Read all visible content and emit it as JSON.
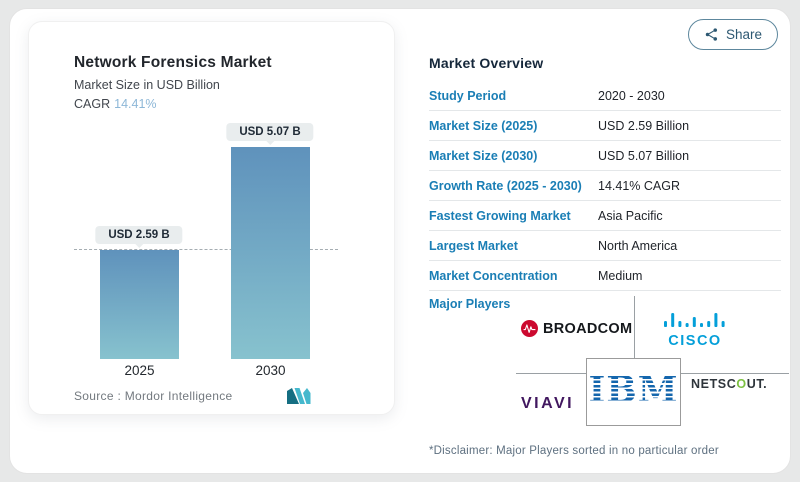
{
  "share": {
    "label": "Share"
  },
  "chart": {
    "title": "Network Forensics Market",
    "subtitle": "Market Size in USD Billion",
    "cagr_label": "CAGR",
    "cagr_value": "14.41%",
    "source": "Source :  Mordor Intelligence"
  },
  "chart_data": {
    "type": "bar",
    "title": "Network Forensics Market",
    "subtitle": "Market Size in USD Billion",
    "categories": [
      "2025",
      "2030"
    ],
    "values": [
      2.59,
      5.07
    ],
    "bar_labels": [
      "USD 2.59 B",
      "USD 5.07 B"
    ],
    "unit": "USD Billion",
    "cagr_pct": 14.41,
    "ylim": [
      0,
      5.5
    ],
    "reference_line_at": 2.59,
    "bar_color_top": "#5f92bc",
    "bar_color_bottom": "#87c2ce"
  },
  "overview": {
    "heading": "Market Overview",
    "rows": [
      {
        "label": "Study Period",
        "value": "2020 - 2030"
      },
      {
        "label": "Market Size (2025)",
        "value": "USD 2.59 Billion"
      },
      {
        "label": "Market Size (2030)",
        "value": "USD 5.07 Billion"
      },
      {
        "label": "Growth Rate (2025 - 2030)",
        "value": "14.41% CAGR"
      },
      {
        "label": "Fastest Growing Market",
        "value": "Asia Pacific"
      },
      {
        "label": "Largest Market",
        "value": "North America"
      },
      {
        "label": "Market Concentration",
        "value": "Medium"
      }
    ],
    "major_players_label": "Major Players",
    "disclaimer": "*Disclaimer: Major Players sorted in no particular order"
  },
  "logos": {
    "broadcom": "BROADCOM",
    "cisco": "CISCO",
    "viavi": "VIAVI",
    "ibm": "IBM",
    "netscout_pre": "NETSC",
    "netscout_o": "O",
    "netscout_post": "UT."
  },
  "colors": {
    "label_teal": "#1a7eb5",
    "cagr_blue": "#8db7d7",
    "broadcom_red": "#cc092f",
    "cisco_blue": "#049fd9",
    "viavi_purple": "#41175f",
    "ibm_blue": "#1466ad",
    "netscout_green": "#7dc142"
  }
}
